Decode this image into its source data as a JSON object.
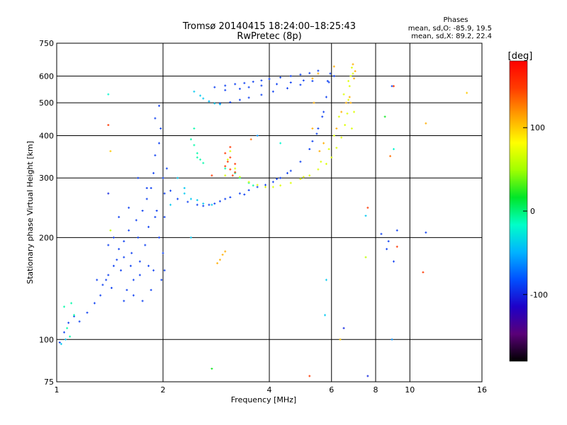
{
  "chart_data": {
    "type": "scatter",
    "title": "Tromsø 20140415 18:24:00–18:25:43",
    "subtitle": "RwPretec (8p)",
    "xlabel": "Frequency [MHz]",
    "ylabel": "Stationary phase Virtual Height [km]",
    "x_scale": "log",
    "y_scale": "log",
    "xlim": [
      1,
      16
    ],
    "ylim": [
      75,
      750
    ],
    "x_ticks": [
      1,
      2,
      4,
      6,
      8,
      10,
      16
    ],
    "x_tick_labels": [
      "1",
      "2",
      "4",
      "6",
      "8",
      "10",
      "16"
    ],
    "y_ticks": [
      75,
      100,
      200,
      300,
      400,
      500,
      600,
      750
    ],
    "y_tick_labels": [
      "75",
      "100",
      "200",
      "300",
      "400",
      "500",
      "600",
      "750"
    ],
    "grid": true,
    "stats": {
      "heading": "Phases",
      "line_o": "mean, sd,O: -85.9, 19.5",
      "line_x": "mean, sd,X: 89.2, 22.4"
    },
    "colorbar": {
      "label": "[deg]",
      "range": [
        -180,
        180
      ],
      "ticks": [
        100,
        0,
        -100
      ],
      "tick_labels": [
        "100",
        "0",
        "-100"
      ],
      "colors": [
        "#000000",
        "#5a0078",
        "#1e00c8",
        "#0050ff",
        "#00b4ff",
        "#00ffc8",
        "#00e628",
        "#a0ff00",
        "#ffff00",
        "#ffa000",
        "#ff3c00",
        "#ff0000"
      ]
    },
    "series": [
      {
        "phase": -90,
        "points": [
          [
            1.02,
            98
          ],
          [
            1.05,
            105
          ],
          [
            1.08,
            112
          ],
          [
            1.12,
            117
          ],
          [
            1.16,
            113
          ],
          [
            1.22,
            120
          ],
          [
            1.28,
            128
          ],
          [
            1.33,
            135
          ],
          [
            1.38,
            150
          ],
          [
            1.43,
            142
          ],
          [
            1.45,
            165
          ],
          [
            1.48,
            172
          ],
          [
            1.5,
            185
          ],
          [
            1.52,
            160
          ],
          [
            1.55,
            195
          ],
          [
            1.58,
            140
          ],
          [
            1.6,
            210
          ],
          [
            1.63,
            180
          ],
          [
            1.65,
            150
          ],
          [
            1.68,
            225
          ],
          [
            1.7,
            200
          ],
          [
            1.72,
            170
          ],
          [
            1.75,
            240
          ],
          [
            1.78,
            190
          ],
          [
            1.8,
            260
          ],
          [
            1.82,
            215
          ],
          [
            1.85,
            280
          ],
          [
            1.88,
            310
          ],
          [
            1.9,
            350
          ],
          [
            1.92,
            240
          ],
          [
            1.95,
            380
          ],
          [
            1.97,
            420
          ],
          [
            2.0,
            300
          ],
          [
            2.02,
            270
          ],
          [
            2.05,
            320
          ],
          [
            1.9,
            230
          ],
          [
            1.95,
            200
          ],
          [
            2.0,
            180
          ],
          [
            1.88,
            160
          ],
          [
            2.02,
            230
          ],
          [
            2.1,
            275
          ],
          [
            2.2,
            260
          ],
          [
            2.35,
            255
          ],
          [
            2.5,
            250
          ],
          [
            2.6,
            248
          ],
          [
            2.7,
            250
          ],
          [
            2.8,
            252
          ],
          [
            2.9,
            256
          ],
          [
            3.0,
            260
          ],
          [
            3.1,
            263
          ],
          [
            3.3,
            270
          ],
          [
            3.5,
            276
          ],
          [
            3.7,
            282
          ],
          [
            3.9,
            286
          ],
          [
            4.1,
            292
          ],
          [
            4.3,
            300
          ],
          [
            4.6,
            315
          ],
          [
            4.9,
            335
          ],
          [
            5.2,
            365
          ],
          [
            5.45,
            405
          ],
          [
            5.65,
            455
          ],
          [
            5.8,
            520
          ],
          [
            5.9,
            575
          ],
          [
            5.95,
            610
          ],
          [
            5.7,
            470
          ],
          [
            5.5,
            420
          ],
          [
            5.3,
            385
          ],
          [
            4.5,
            310
          ],
          [
            4.2,
            298
          ],
          [
            3.4,
            268
          ],
          [
            3.0,
            562
          ],
          [
            3.2,
            568
          ],
          [
            3.4,
            572
          ],
          [
            3.6,
            577
          ],
          [
            3.8,
            582
          ],
          [
            4.0,
            588
          ],
          [
            4.3,
            594
          ],
          [
            4.6,
            600
          ],
          [
            4.9,
            606
          ],
          [
            5.2,
            612
          ],
          [
            5.5,
            622
          ],
          [
            2.8,
            556
          ],
          [
            3.0,
            545
          ],
          [
            3.3,
            550
          ],
          [
            3.5,
            556
          ],
          [
            3.8,
            562
          ],
          [
            4.2,
            568
          ],
          [
            4.6,
            574
          ],
          [
            5.0,
            582
          ],
          [
            2.7,
            505
          ],
          [
            2.9,
            498
          ],
          [
            3.1,
            502
          ],
          [
            3.3,
            510
          ],
          [
            3.5,
            518
          ],
          [
            3.8,
            528
          ],
          [
            4.1,
            540
          ],
          [
            4.5,
            552
          ],
          [
            4.9,
            565
          ],
          [
            5.3,
            580
          ],
          [
            1.3,
            150
          ],
          [
            1.35,
            145
          ],
          [
            1.4,
            155
          ],
          [
            1.55,
            130
          ],
          [
            1.65,
            135
          ],
          [
            1.75,
            130
          ],
          [
            1.85,
            140
          ],
          [
            1.9,
            450
          ],
          [
            1.95,
            490
          ],
          [
            1.8,
            280
          ],
          [
            1.7,
            300
          ],
          [
            1.6,
            245
          ],
          [
            1.5,
            230
          ],
          [
            1.45,
            200
          ],
          [
            1.4,
            190
          ],
          [
            1.55,
            175
          ],
          [
            1.62,
            165
          ],
          [
            1.72,
            155
          ],
          [
            1.82,
            165
          ],
          [
            1.98,
            150
          ],
          [
            2.02,
            160
          ],
          [
            6.1,
            600
          ],
          [
            5.85,
            580
          ],
          [
            8.3,
            205
          ],
          [
            8.7,
            195
          ],
          [
            9.2,
            210
          ],
          [
            8.9,
            560
          ],
          [
            11.1,
            207
          ],
          [
            9.0,
            170
          ],
          [
            8.6,
            185
          ]
        ]
      },
      {
        "phase": -40,
        "points": [
          [
            2.6,
            515
          ],
          [
            2.7,
            505
          ],
          [
            2.8,
            498
          ],
          [
            2.9,
            495
          ],
          [
            2.55,
            525
          ],
          [
            2.45,
            540
          ],
          [
            2.4,
            200
          ],
          [
            2.1,
            250
          ],
          [
            2.3,
            280
          ],
          [
            2.4,
            260
          ],
          [
            2.3,
            270
          ],
          [
            2.2,
            300
          ],
          [
            2.5,
            258
          ],
          [
            2.6,
            252
          ],
          [
            2.75,
            250
          ],
          [
            5.8,
            150
          ],
          [
            5.75,
            118
          ],
          [
            7.5,
            232
          ],
          [
            1.06,
            100
          ],
          [
            1.03,
            97
          ]
        ]
      },
      {
        "phase": -10,
        "points": [
          [
            2.45,
            375
          ],
          [
            2.5,
            355
          ],
          [
            2.55,
            340
          ],
          [
            2.6,
            332
          ],
          [
            2.5,
            345
          ],
          [
            2.4,
            390
          ],
          [
            2.45,
            420
          ],
          [
            3.5,
            290
          ],
          [
            3.6,
            285
          ],
          [
            3.3,
            300
          ],
          [
            1.07,
            108
          ],
          [
            1.09,
            102
          ],
          [
            1.12,
            118
          ],
          [
            1.1,
            128
          ],
          [
            1.05,
            125
          ],
          [
            3.2,
            310
          ],
          [
            3.0,
            320
          ]
        ]
      },
      {
        "phase": 70,
        "points": [
          [
            3.3,
            302
          ],
          [
            3.5,
            292
          ],
          [
            3.7,
            286
          ],
          [
            3.9,
            282
          ],
          [
            4.1,
            282
          ],
          [
            4.3,
            285
          ],
          [
            4.6,
            290
          ],
          [
            4.9,
            298
          ],
          [
            5.2,
            305
          ],
          [
            5.5,
            318
          ],
          [
            5.8,
            330
          ],
          [
            6.0,
            345
          ],
          [
            6.2,
            368
          ],
          [
            6.4,
            395
          ],
          [
            6.55,
            430
          ],
          [
            6.65,
            465
          ],
          [
            6.7,
            510
          ],
          [
            6.75,
            560
          ],
          [
            6.8,
            600
          ],
          [
            6.85,
            635
          ],
          [
            6.9,
            610
          ],
          [
            6.7,
            580
          ],
          [
            6.5,
            530
          ],
          [
            6.3,
            455
          ],
          [
            6.1,
            400
          ],
          [
            5.9,
            365
          ],
          [
            5.6,
            335
          ],
          [
            6.85,
            420
          ],
          [
            6.95,
            470
          ],
          [
            5.0,
            302
          ],
          [
            3.2,
            320
          ],
          [
            3.05,
            340
          ],
          [
            3.1,
            360
          ],
          [
            3.0,
            305
          ]
        ]
      },
      {
        "phase": 110,
        "points": [
          [
            6.9,
            650
          ],
          [
            7.0,
            620
          ],
          [
            6.95,
            590
          ],
          [
            6.75,
            520
          ],
          [
            6.6,
            500
          ],
          [
            6.4,
            470
          ],
          [
            6.2,
            420
          ],
          [
            5.55,
            360
          ],
          [
            5.7,
            380
          ],
          [
            6.8,
            500
          ],
          [
            2.95,
            178
          ],
          [
            2.9,
            172
          ],
          [
            2.85,
            168
          ],
          [
            3.0,
            182
          ],
          [
            5.3,
            420
          ],
          [
            5.35,
            500
          ],
          [
            6.1,
            640
          ],
          [
            5.3,
            590
          ],
          [
            5.5,
            610
          ],
          [
            11.1,
            435
          ]
        ]
      },
      {
        "phase": 150,
        "points": [
          [
            3.0,
            325
          ],
          [
            3.1,
            318
          ],
          [
            3.2,
            312
          ],
          [
            3.05,
            335
          ],
          [
            3.15,
            305
          ],
          [
            3.1,
            345
          ],
          [
            3.0,
            355
          ],
          [
            3.2,
            330
          ],
          [
            2.75,
            305
          ],
          [
            3.1,
            370
          ],
          [
            7.6,
            245
          ],
          [
            9.0,
            560
          ],
          [
            10.9,
            158
          ]
        ]
      }
    ],
    "outliers_phase_mixed": [
      [
        1.4,
        530
      ],
      [
        1.4,
        430
      ],
      [
        1.42,
        360
      ],
      [
        1.4,
        270
      ],
      [
        1.42,
        210
      ],
      [
        2.75,
        82
      ],
      [
        3.55,
        390
      ],
      [
        3.7,
        400
      ],
      [
        4.3,
        380
      ],
      [
        5.2,
        78
      ],
      [
        6.35,
        100
      ],
      [
        6.5,
        108
      ],
      [
        7.5,
        175
      ],
      [
        8.5,
        455
      ],
      [
        8.8,
        348
      ],
      [
        8.9,
        100
      ],
      [
        9.0,
        365
      ],
      [
        9.2,
        188
      ],
      [
        14.5,
        535
      ],
      [
        7.6,
        78
      ]
    ]
  }
}
